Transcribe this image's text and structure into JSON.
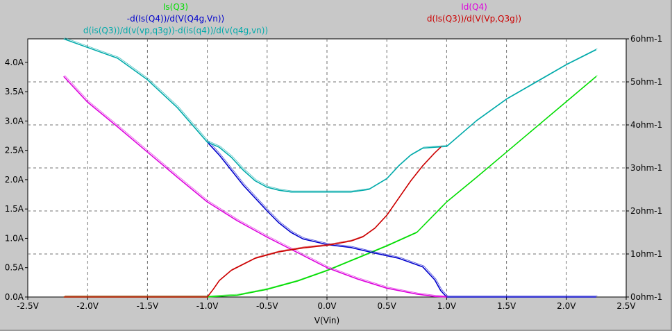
{
  "chart_data": {
    "type": "line",
    "xlabel": "V(Vin)",
    "x_ticks": [
      "-2.5V",
      "-2.0V",
      "-1.5V",
      "-1.0V",
      "-0.5V",
      "0.0V",
      "0.5V",
      "1.0V",
      "1.5V",
      "2.0V",
      "2.5V"
    ],
    "xlim": [
      -2.5,
      2.5
    ],
    "left_axis": {
      "unit": "A",
      "ylim": [
        0,
        4.4
      ],
      "ticks": [
        "0.0A",
        "0.5A",
        "1.0A",
        "1.5A",
        "2.0A",
        "2.5A",
        "3.0A",
        "3.5A",
        "4.0A"
      ]
    },
    "right_axis": {
      "unit": "ohm-1",
      "ylim": [
        0,
        6
      ],
      "ticks": [
        "0ohm-1",
        "1ohm-1",
        "2ohm-1",
        "3ohm-1",
        "4ohm-1",
        "5ohm-1",
        "6ohm-1"
      ]
    },
    "grid": true,
    "colors": {
      "background": "#c8c8c8",
      "plot_area": "#ffffff",
      "grid": "#707070"
    },
    "series": [
      {
        "name": "Is(Q3)",
        "axis": "left",
        "color": "#00dd00",
        "legend_pos": "top-left-1",
        "x": [
          -2.2,
          -1.0,
          -0.75,
          -0.5,
          -0.25,
          0.0,
          0.25,
          0.5,
          0.75,
          1.0,
          1.25,
          1.5,
          1.75,
          2.0,
          2.25
        ],
        "y": [
          0.0,
          0.0,
          0.03,
          0.13,
          0.27,
          0.45,
          0.66,
          0.87,
          1.1,
          1.62,
          2.04,
          2.47,
          2.9,
          3.33,
          3.76
        ]
      },
      {
        "name": "-d(Is(Q4))/d(V(Q4g,Vn))",
        "axis": "right",
        "color": "#0000cc",
        "legend_pos": "top-left-2",
        "x": [
          -1.0,
          -0.9,
          -0.8,
          -0.7,
          -0.6,
          -0.5,
          -0.4,
          -0.3,
          -0.2,
          0.0,
          0.2,
          0.4,
          0.6,
          0.8,
          0.9,
          0.95,
          1.0,
          2.25
        ],
        "y": [
          3.6,
          3.3,
          2.95,
          2.6,
          2.3,
          2.0,
          1.72,
          1.5,
          1.35,
          1.22,
          1.15,
          1.02,
          0.9,
          0.7,
          0.4,
          0.15,
          0.0,
          0.0
        ]
      },
      {
        "name": "d(is(Q3))/d(v(vp,q3g))-d(is(q4))/d(v(q4g,vn))",
        "axis": "right",
        "color": "#00aaaa",
        "legend_pos": "top-left-3",
        "x": [
          -2.2,
          -1.75,
          -1.5,
          -1.25,
          -1.0,
          -0.9,
          -0.8,
          -0.7,
          -0.6,
          -0.5,
          -0.4,
          -0.3,
          -0.2,
          0.0,
          0.2,
          0.35,
          0.5,
          0.6,
          0.7,
          0.8,
          0.9,
          1.0,
          1.25,
          1.5,
          1.75,
          2.0,
          2.25
        ],
        "y": [
          6.0,
          5.55,
          5.05,
          4.4,
          3.6,
          3.48,
          3.25,
          2.95,
          2.7,
          2.55,
          2.48,
          2.44,
          2.44,
          2.44,
          2.44,
          2.5,
          2.75,
          3.05,
          3.3,
          3.46,
          3.48,
          3.5,
          4.1,
          4.6,
          5.0,
          5.4,
          5.75
        ]
      },
      {
        "name": "Id(Q4)",
        "axis": "left",
        "color": "#dd00dd",
        "legend_pos": "top-right-1",
        "x": [
          -2.2,
          -2.0,
          -1.75,
          -1.5,
          -1.25,
          -1.0,
          -0.75,
          -0.5,
          -0.25,
          0.0,
          0.25,
          0.5,
          0.75,
          0.9,
          1.0
        ],
        "y": [
          3.76,
          3.32,
          2.9,
          2.47,
          2.04,
          1.62,
          1.3,
          1.02,
          0.76,
          0.5,
          0.31,
          0.15,
          0.05,
          0.01,
          0.0
        ]
      },
      {
        "name": "d(Is(Q3))/d(V(Vp,Q3g))",
        "axis": "right",
        "color": "#cc0000",
        "legend_pos": "top-right-2",
        "x": [
          -2.2,
          -1.0,
          -0.95,
          -0.9,
          -0.8,
          -0.6,
          -0.4,
          -0.2,
          0.0,
          0.2,
          0.3,
          0.4,
          0.5,
          0.6,
          0.7,
          0.8,
          0.9,
          0.95
        ],
        "y": [
          0.0,
          0.0,
          0.18,
          0.38,
          0.62,
          0.9,
          1.05,
          1.14,
          1.2,
          1.3,
          1.4,
          1.6,
          1.9,
          2.3,
          2.7,
          3.05,
          3.35,
          3.48
        ]
      }
    ]
  }
}
